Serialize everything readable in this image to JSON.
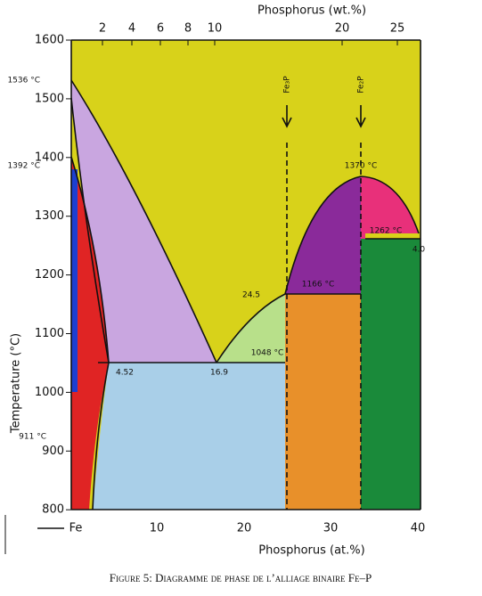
{
  "top_axis": {
    "title": "Phosphorus (wt.%)",
    "ticks": [
      "2",
      "4",
      "6",
      "8",
      "10",
      "20",
      "25"
    ]
  },
  "left_axis": {
    "title": "Temperature (°C)",
    "ticks": [
      "1600",
      "1500",
      "1400",
      "1300",
      "1200",
      "1100",
      "1000",
      "900",
      "800"
    ]
  },
  "bottom_axis": {
    "title": "Phosphorus (at.%)",
    "ticks": [
      "Fe",
      "10",
      "20",
      "30",
      "40"
    ]
  },
  "annotations": [
    "1536 °C",
    "1392 °C",
    "911 °C",
    "Fe₃P",
    "Fe₂P",
    "1370 °C",
    "1262 °C",
    "4.0",
    "24.5",
    "1166 °C",
    "1048 °C",
    "16.9",
    "4.52"
  ],
  "caption": "Figure 5: Diagramme de phase de l’alliage binaire Fe–P"
}
